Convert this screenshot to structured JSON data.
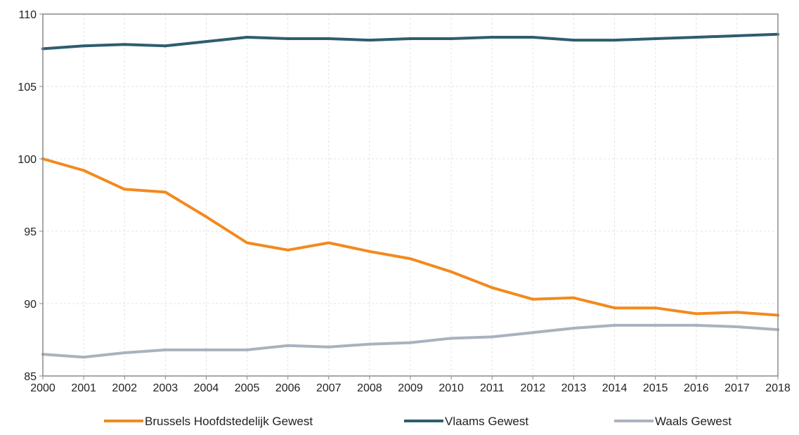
{
  "chart_data": {
    "type": "line",
    "x": [
      "2000",
      "2001",
      "2002",
      "2003",
      "2004",
      "2005",
      "2006",
      "2007",
      "2008",
      "2009",
      "2010",
      "2011",
      "2012",
      "2013",
      "2014",
      "2015",
      "2016",
      "2017",
      "2018"
    ],
    "ylim": [
      85,
      110
    ],
    "yticks": [
      85,
      90,
      95,
      100,
      105,
      110
    ],
    "grid": true,
    "legend_position": "bottom",
    "series": [
      {
        "name": "Brussels Hoofdstedelijk Gewest",
        "color": "#F28A1E",
        "values": [
          100.0,
          99.2,
          97.9,
          97.7,
          96.0,
          94.2,
          93.7,
          94.2,
          93.6,
          93.1,
          92.2,
          91.1,
          90.3,
          90.4,
          89.7,
          89.7,
          89.3,
          89.4,
          89.2
        ]
      },
      {
        "name": "Vlaams Gewest",
        "color": "#2E5D6E",
        "values": [
          107.6,
          107.8,
          107.9,
          107.8,
          108.1,
          108.4,
          108.3,
          108.3,
          108.2,
          108.3,
          108.3,
          108.4,
          108.4,
          108.2,
          108.2,
          108.3,
          108.4,
          108.5,
          108.6
        ]
      },
      {
        "name": "Waals Gewest",
        "color": "#A9B2BD",
        "values": [
          86.5,
          86.3,
          86.6,
          86.8,
          86.8,
          86.8,
          87.1,
          87.0,
          87.2,
          87.3,
          87.6,
          87.7,
          88.0,
          88.3,
          88.5,
          88.5,
          88.5,
          88.4,
          88.2
        ]
      }
    ]
  },
  "colors": {
    "axis": "#8a8a8a",
    "grid": "#e3e3e3"
  }
}
